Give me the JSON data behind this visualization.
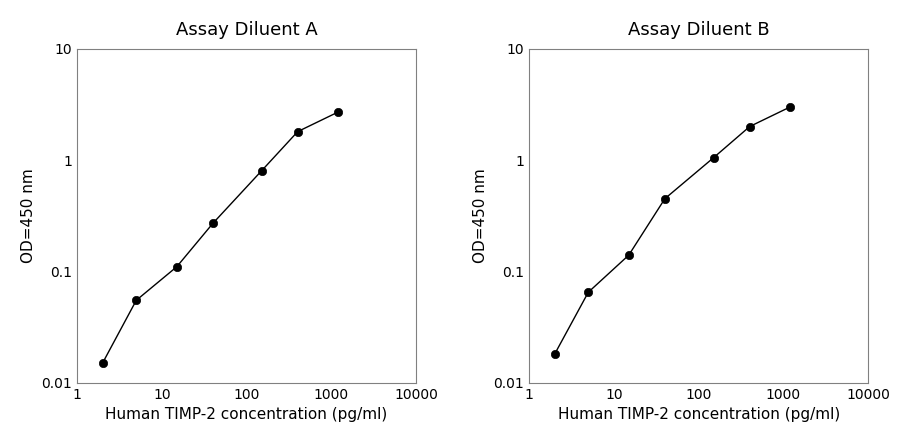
{
  "panel_A": {
    "title": "Assay Diluent A",
    "x": [
      2,
      5,
      15,
      40,
      150,
      400,
      1200
    ],
    "y": [
      0.015,
      0.055,
      0.11,
      0.27,
      0.8,
      1.8,
      2.7
    ],
    "xlabel": "Human TIMP-2 concentration (pg/ml)",
    "ylabel": "OD=450 nm"
  },
  "panel_B": {
    "title": "Assay Diluent B",
    "x": [
      2,
      5,
      15,
      40,
      150,
      400,
      1200
    ],
    "y": [
      0.018,
      0.065,
      0.14,
      0.45,
      1.05,
      2.0,
      3.0
    ],
    "xlabel": "Human TIMP-2 concentration (pg/ml)",
    "ylabel": "OD=450 nm"
  },
  "xlim": [
    1,
    10000
  ],
  "ylim": [
    0.01,
    10
  ],
  "line_color": "#000000",
  "marker": "o",
  "marker_size": 6,
  "marker_facecolor": "#000000",
  "background_color": "#ffffff",
  "title_fontsize": 13,
  "label_fontsize": 11,
  "tick_fontsize": 10,
  "spine_color": "#808080"
}
